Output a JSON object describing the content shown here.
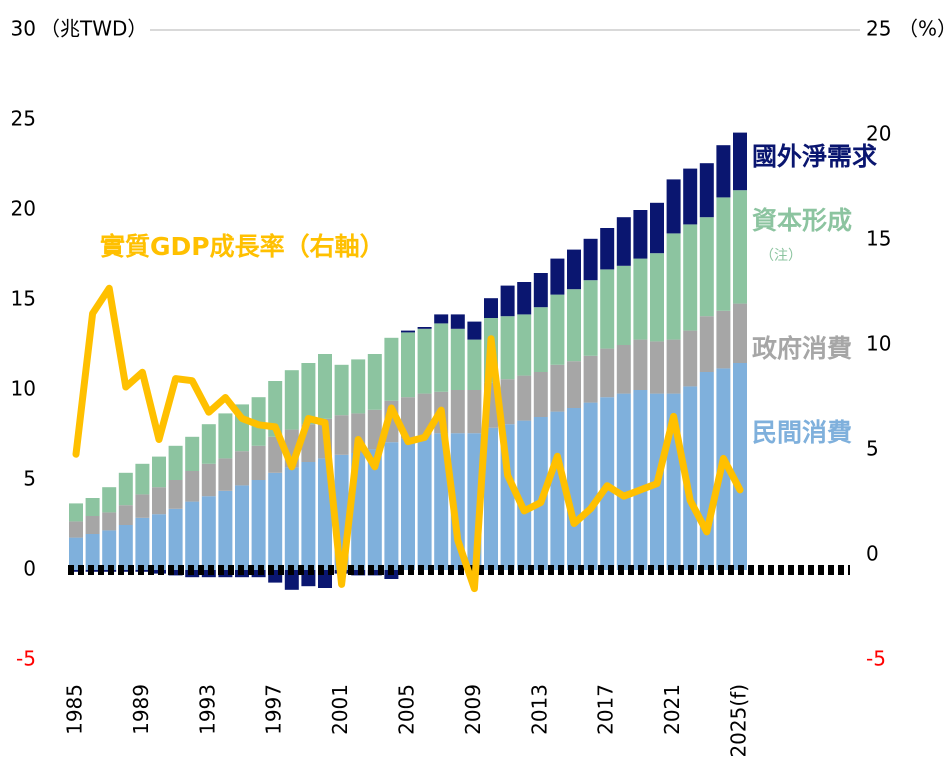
{
  "chart_data": {
    "type": "bar",
    "y_unit": "（兆TWD）",
    "y2_unit": "（%）",
    "note": "（注）",
    "categories": [
      "1985",
      null,
      null,
      null,
      "1989",
      null,
      null,
      null,
      "1993",
      null,
      null,
      null,
      "1997",
      null,
      null,
      null,
      "2001",
      null,
      null,
      null,
      "2005",
      null,
      null,
      null,
      "2009",
      null,
      null,
      null,
      "2013",
      null,
      null,
      null,
      "2017",
      null,
      null,
      null,
      "2021",
      null,
      null,
      null,
      "2025(f)"
    ],
    "series": [
      {
        "name": "民間消費",
        "color": "#7fb0dc",
        "values": [
          1.8,
          2.0,
          2.2,
          2.5,
          2.9,
          3.1,
          3.4,
          3.8,
          4.1,
          4.4,
          4.7,
          5.0,
          5.4,
          5.7,
          6.0,
          6.2,
          6.4,
          6.5,
          6.7,
          7.1,
          7.3,
          7.5,
          7.6,
          7.6,
          7.6,
          7.9,
          8.1,
          8.3,
          8.5,
          8.8,
          9.0,
          9.3,
          9.6,
          9.8,
          10.0,
          9.8,
          9.8,
          10.2,
          11.0,
          11.2,
          11.5
        ]
      },
      {
        "name": "政府消費",
        "color": "#a6a6a6",
        "values": [
          0.9,
          1.0,
          1.0,
          1.1,
          1.3,
          1.5,
          1.6,
          1.7,
          1.8,
          1.8,
          1.9,
          1.9,
          2.0,
          2.1,
          2.1,
          2.2,
          2.2,
          2.2,
          2.2,
          2.3,
          2.3,
          2.3,
          2.3,
          2.4,
          2.4,
          2.5,
          2.5,
          2.5,
          2.5,
          2.6,
          2.6,
          2.6,
          2.7,
          2.7,
          2.8,
          2.9,
          3.0,
          3.1,
          3.1,
          3.2,
          3.3
        ]
      },
      {
        "name": "資本形成",
        "color": "#8cc4a0",
        "values": [
          1.0,
          1.0,
          1.4,
          1.8,
          1.7,
          1.7,
          1.9,
          1.9,
          2.2,
          2.5,
          2.6,
          2.7,
          3.1,
          3.3,
          3.4,
          3.6,
          2.8,
          3.0,
          3.1,
          3.5,
          3.6,
          3.6,
          3.8,
          3.4,
          2.8,
          3.6,
          3.5,
          3.4,
          3.6,
          3.9,
          4.0,
          4.2,
          4.4,
          4.4,
          4.5,
          4.9,
          5.9,
          5.9,
          5.5,
          6.3,
          6.3
        ]
      },
      {
        "name": "國外淨需求",
        "color": "#0a1670",
        "values": [
          -0.1,
          -0.1,
          -0.1,
          -0.1,
          -0.1,
          -0.2,
          -0.3,
          -0.4,
          -0.4,
          -0.4,
          -0.4,
          -0.4,
          -0.7,
          -1.1,
          -0.9,
          -1.0,
          -0.2,
          -0.3,
          -0.3,
          -0.5,
          0.1,
          0.1,
          0.5,
          0.8,
          1.0,
          1.1,
          1.7,
          1.8,
          1.9,
          2.0,
          2.2,
          2.3,
          2.3,
          2.7,
          2.7,
          2.8,
          3.0,
          3.1,
          3.0,
          2.9,
          3.2
        ]
      },
      {
        "name": "實質GDP成長率（右軸）",
        "color": "#ffc000",
        "type": "line",
        "axis": "y2",
        "values": [
          4.8,
          11.5,
          12.7,
          8.0,
          8.7,
          5.5,
          8.4,
          8.3,
          6.8,
          7.5,
          6.5,
          6.2,
          6.1,
          4.2,
          6.5,
          6.3,
          -1.4,
          5.5,
          4.2,
          7.0,
          5.4,
          5.6,
          6.9,
          0.7,
          -1.6,
          10.3,
          3.8,
          2.1,
          2.5,
          4.7,
          1.5,
          2.2,
          3.3,
          2.8,
          3.1,
          3.4,
          6.6,
          2.6,
          1.1,
          4.6,
          3.1
        ]
      }
    ],
    "ylim": [
      -5,
      30
    ],
    "yticks": [
      -5,
      0,
      5,
      10,
      15,
      20,
      25,
      30
    ],
    "y2lim": [
      -5,
      25
    ],
    "y2ticks": [
      -5,
      0,
      5,
      10,
      15,
      20,
      25
    ],
    "negative_tick_color": "#ff0000",
    "grid": false
  }
}
